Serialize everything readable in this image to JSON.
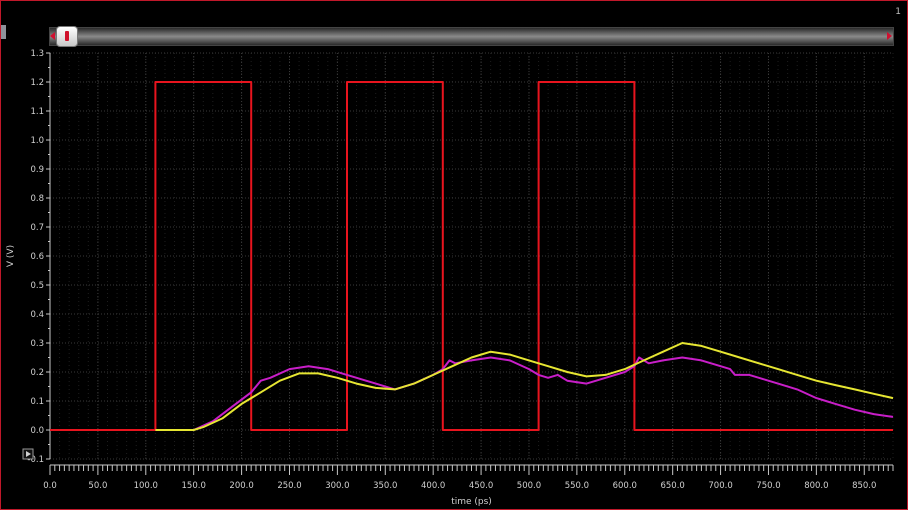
{
  "corner_label": "1",
  "colors": {
    "background": "#000000",
    "grid": "#3a3a3a",
    "axis": "#c8c8c8",
    "frame": "#c0182a"
  },
  "icons": {
    "expand": "expand-arrow-icon",
    "scroll_left": "scroll-left-arrow-icon",
    "scroll_right": "scroll-right-arrow-icon"
  },
  "chart_data": {
    "type": "line",
    "xlabel": "time (ps)",
    "ylabel": "V (V)",
    "xlim": [
      0,
      880
    ],
    "ylim": [
      -0.1,
      1.3
    ],
    "xticks": [
      0,
      50,
      100,
      150,
      200,
      250,
      300,
      350,
      400,
      450,
      500,
      550,
      600,
      650,
      700,
      750,
      800,
      850
    ],
    "xtick_labels": [
      "0.0",
      "50.0",
      "100.0",
      "150.0",
      "200.0",
      "250.0",
      "300.0",
      "350.0",
      "400.0",
      "450.0",
      "500.0",
      "550.0",
      "600.0",
      "650.0",
      "700.0",
      "750.0",
      "800.0",
      "850.0"
    ],
    "yticks": [
      -0.1,
      0.0,
      0.1,
      0.2,
      0.3,
      0.4,
      0.5,
      0.6,
      0.7,
      0.8,
      0.9,
      1.0,
      1.1,
      1.2,
      1.3
    ],
    "ytick_labels": [
      "-0.1",
      "0.0",
      "0.1",
      "0.2",
      "0.3",
      "0.4",
      "0.5",
      "0.6",
      "0.7",
      "0.8",
      "0.9",
      "1.0",
      "1.1",
      "1.2",
      "1.3"
    ],
    "grid": true,
    "series": [
      {
        "color": "#e8141e",
        "x": [
          0,
          110,
          110,
          210,
          210,
          310,
          310,
          410,
          410,
          510,
          510,
          610,
          610,
          880
        ],
        "y": [
          0,
          0,
          1.2,
          1.2,
          0,
          0,
          1.2,
          1.2,
          0,
          0,
          1.2,
          1.2,
          0,
          0
        ]
      },
      {
        "color": "#c81ec8",
        "x": [
          110,
          150,
          170,
          190,
          210,
          220,
          230,
          250,
          270,
          290,
          310,
          330,
          340,
          360,
          380,
          400,
          410,
          417,
          423,
          440,
          460,
          480,
          500,
          510,
          520,
          530,
          540,
          560,
          580,
          600,
          610,
          615,
          625,
          640,
          660,
          680,
          700,
          710,
          715,
          730,
          740,
          760,
          780,
          800,
          810,
          820,
          840,
          860,
          880
        ],
        "y": [
          0,
          0,
          0.03,
          0.08,
          0.13,
          0.17,
          0.18,
          0.21,
          0.22,
          0.21,
          0.19,
          0.17,
          0.16,
          0.14,
          0.16,
          0.19,
          0.21,
          0.24,
          0.23,
          0.24,
          0.25,
          0.24,
          0.21,
          0.19,
          0.18,
          0.19,
          0.17,
          0.16,
          0.18,
          0.2,
          0.22,
          0.25,
          0.23,
          0.24,
          0.25,
          0.24,
          0.22,
          0.21,
          0.19,
          0.19,
          0.18,
          0.16,
          0.14,
          0.11,
          0.1,
          0.09,
          0.07,
          0.055,
          0.045
        ]
      },
      {
        "color": "#e6e632",
        "x": [
          110,
          150,
          160,
          180,
          200,
          220,
          240,
          260,
          280,
          300,
          320,
          340,
          360,
          380,
          400,
          420,
          440,
          460,
          480,
          500,
          520,
          540,
          560,
          580,
          600,
          620,
          640,
          660,
          680,
          700,
          720,
          740,
          760,
          780,
          800,
          820,
          840,
          860,
          880
        ],
        "y": [
          0,
          0,
          0.01,
          0.04,
          0.09,
          0.13,
          0.17,
          0.195,
          0.195,
          0.18,
          0.16,
          0.145,
          0.14,
          0.16,
          0.19,
          0.22,
          0.25,
          0.27,
          0.26,
          0.24,
          0.22,
          0.2,
          0.185,
          0.19,
          0.21,
          0.24,
          0.27,
          0.3,
          0.29,
          0.27,
          0.25,
          0.23,
          0.21,
          0.19,
          0.17,
          0.155,
          0.14,
          0.125,
          0.11
        ]
      }
    ]
  }
}
